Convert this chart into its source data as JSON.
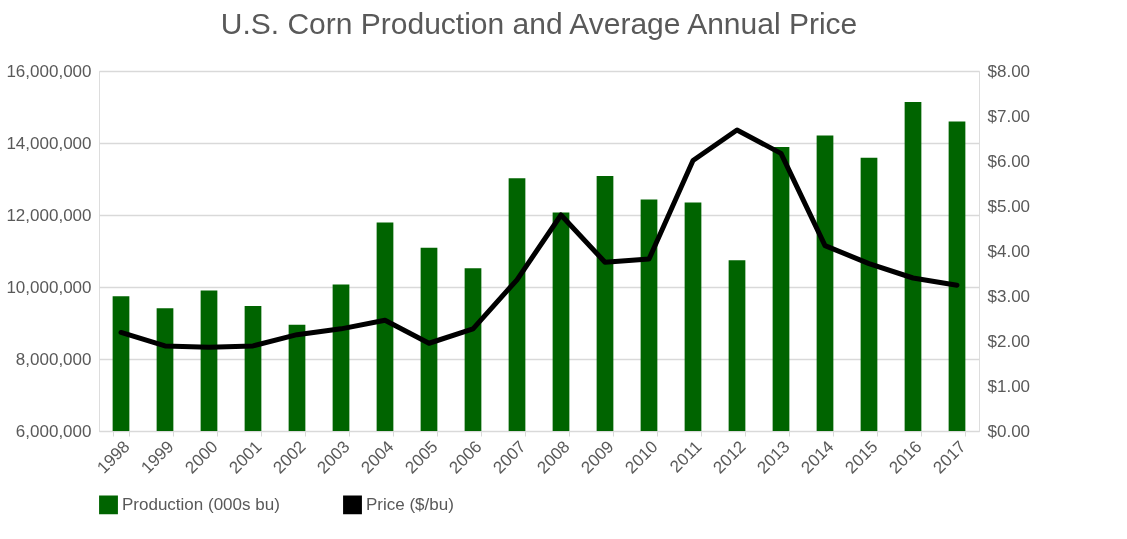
{
  "chart_data": {
    "type": "bar",
    "title": "U.S. Corn Production and Average Annual Price",
    "categories": [
      "1998",
      "1999",
      "2000",
      "2001",
      "2002",
      "2003",
      "2004",
      "2005",
      "2006",
      "2007",
      "2008",
      "2009",
      "2010",
      "2011",
      "2012",
      "2013",
      "2014",
      "2015",
      "2016",
      "2017"
    ],
    "series": [
      {
        "name": "Production (000s bu)",
        "color": "#006400",
        "values": [
          9740000,
          9410000,
          9900000,
          9470000,
          8950000,
          10070000,
          11790000,
          11090000,
          10520000,
          13020000,
          12070000,
          13080000,
          12430000,
          12350000,
          10740000,
          13890000,
          14210000,
          13590000,
          15140000,
          14600000
        ]
      },
      {
        "name": "Price ($/bu)",
        "type": "line",
        "axis": "y2",
        "color": "#000000",
        "values": [
          2.19,
          1.89,
          1.86,
          1.89,
          2.14,
          2.27,
          2.46,
          1.95,
          2.27,
          3.36,
          4.8,
          3.75,
          3.82,
          6.01,
          6.69,
          6.17,
          4.12,
          3.72,
          3.4,
          3.24
        ]
      }
    ],
    "ylim": [
      6000000,
      16000000
    ],
    "yticks": [
      {
        "value": 6000000,
        "label": "6,000,000"
      },
      {
        "value": 8000000,
        "label": "8,000,000"
      },
      {
        "value": 10000000,
        "label": "10,000,000"
      },
      {
        "value": 12000000,
        "label": "12,000,000"
      },
      {
        "value": 14000000,
        "label": "14,000,000"
      },
      {
        "value": 16000000,
        "label": "16,000,000"
      }
    ],
    "y2lim": [
      0,
      8
    ],
    "y2ticks": [
      {
        "value": 0,
        "label": "$0.00"
      },
      {
        "value": 1,
        "label": "$1.00"
      },
      {
        "value": 2,
        "label": "$2.00"
      },
      {
        "value": 3,
        "label": "$3.00"
      },
      {
        "value": 4,
        "label": "$4.00"
      },
      {
        "value": 5,
        "label": "$5.00"
      },
      {
        "value": 6,
        "label": "$6.00"
      },
      {
        "value": 7,
        "label": "$7.00"
      },
      {
        "value": 8,
        "label": "$8.00"
      }
    ],
    "grid": "y",
    "legend": "bottom",
    "line_style": "solid",
    "marker": "none"
  }
}
